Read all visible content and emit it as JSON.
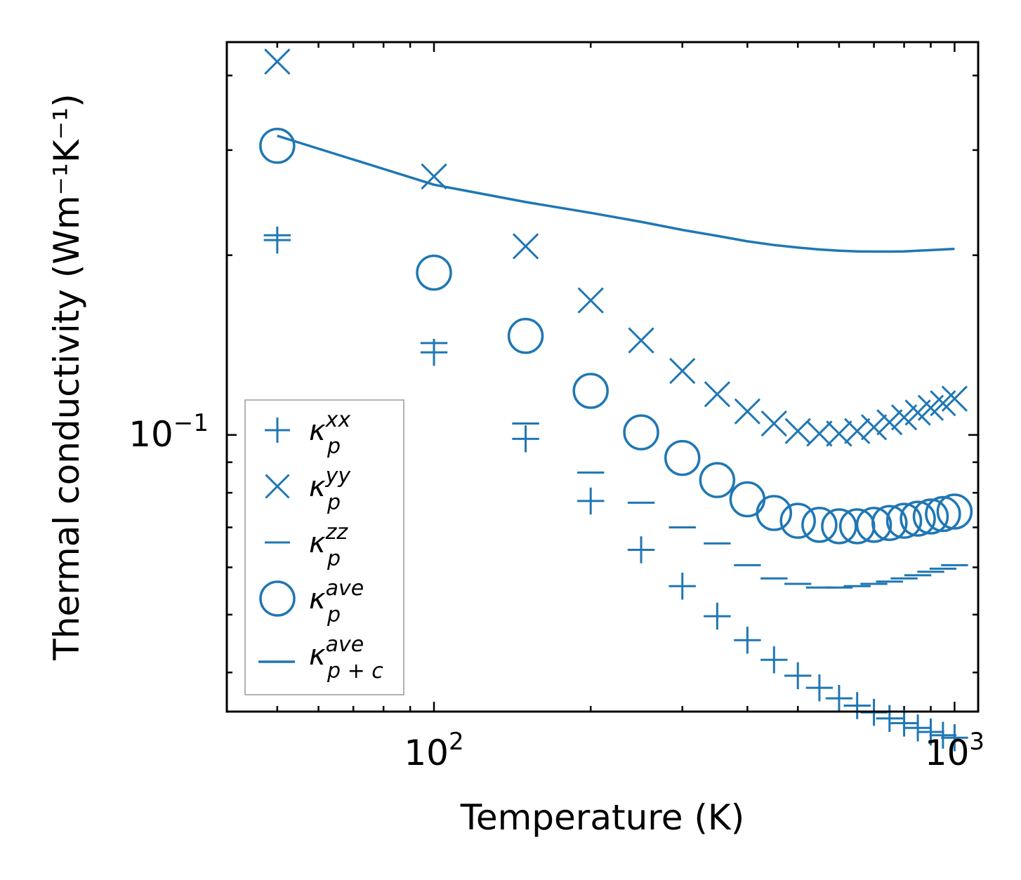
{
  "chart_data": {
    "type": "scatter",
    "xscale": "log",
    "yscale": "log",
    "xlabel": "Temperature (K)",
    "ylabel": "Thermal conductivity (Wm⁻¹K⁻¹)",
    "xlim": [
      40,
      1110
    ],
    "ylim": [
      0.0344,
      0.455
    ],
    "xticks": [
      {
        "value": 100,
        "base": "10",
        "exp": "2"
      },
      {
        "value": 1000,
        "base": "10",
        "exp": "3"
      }
    ],
    "yticks": [
      {
        "value": 0.1,
        "base": "10",
        "exp": "−1"
      }
    ],
    "color": "#1f77b4",
    "x": [
      50,
      100,
      150,
      200,
      250,
      300,
      350,
      400,
      450,
      500,
      550,
      600,
      650,
      700,
      750,
      800,
      850,
      900,
      950,
      1000
    ],
    "series": [
      {
        "name": "kappa_xx",
        "marker": "plus",
        "values": [
          0.212,
          0.1375,
          0.0985,
          0.0775,
          0.0642,
          0.0558,
          0.0497,
          0.0453,
          0.042,
          0.0395,
          0.0377,
          0.0362,
          0.0352,
          0.0343,
          0.0335,
          0.0329,
          0.0323,
          0.0318,
          0.0314,
          0.0311
        ]
      },
      {
        "name": "kappa_yy",
        "marker": "x",
        "values": [
          0.422,
          0.271,
          0.207,
          0.168,
          0.144,
          0.128,
          0.117,
          0.1095,
          0.1045,
          0.1015,
          0.1005,
          0.1005,
          0.1015,
          0.103,
          0.105,
          0.107,
          0.109,
          0.111,
          0.113,
          0.115
        ]
      },
      {
        "name": "kappa_zz",
        "marker": "hline",
        "values": [
          0.216,
          0.1425,
          0.1045,
          0.0865,
          0.077,
          0.07,
          0.0658,
          0.0605,
          0.0575,
          0.0563,
          0.0555,
          0.0555,
          0.0558,
          0.0563,
          0.0568,
          0.0575,
          0.0582,
          0.059,
          0.0597,
          0.0605
        ]
      },
      {
        "name": "kappa_ave",
        "marker": "circle",
        "values": [
          0.305,
          0.187,
          0.1465,
          0.1185,
          0.101,
          0.0915,
          0.084,
          0.078,
          0.074,
          0.0718,
          0.0707,
          0.0703,
          0.0703,
          0.0707,
          0.0712,
          0.0718,
          0.0724,
          0.073,
          0.0737,
          0.0744
        ]
      },
      {
        "name": "kappa_pc_ave",
        "marker": "line",
        "values": [
          0.317,
          0.2625,
          0.2455,
          0.2355,
          0.2275,
          0.2205,
          0.2155,
          0.211,
          0.208,
          0.206,
          0.2045,
          0.2035,
          0.203,
          0.2028,
          0.2028,
          0.203,
          0.2035,
          0.204,
          0.2045,
          0.205
        ]
      }
    ],
    "legend": {
      "placement": "lower-left",
      "entries": [
        {
          "series": "kappa_xx",
          "base": "κ",
          "sub": "p",
          "sup": "xx"
        },
        {
          "series": "kappa_yy",
          "base": "κ",
          "sub": "p",
          "sup": "yy"
        },
        {
          "series": "kappa_zz",
          "base": "κ",
          "sub": "p",
          "sup": "zz"
        },
        {
          "series": "kappa_ave",
          "base": "κ",
          "sub": "p",
          "sup": "ave"
        },
        {
          "series": "kappa_pc_ave",
          "base": "κ",
          "sub": "p + c",
          "sup": "ave"
        }
      ]
    }
  }
}
